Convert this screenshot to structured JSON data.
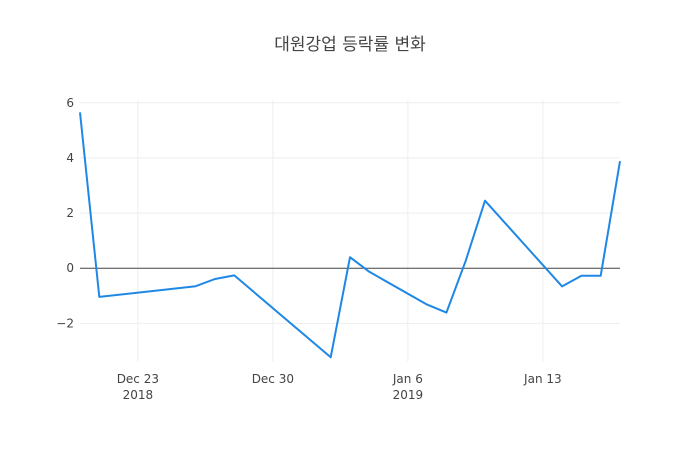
{
  "chart_data": {
    "type": "line",
    "title": "대원강업 등락률 변화",
    "xlabel": "",
    "ylabel": "",
    "x": [
      "2018-12-20",
      "2018-12-21",
      "2018-12-26",
      "2018-12-27",
      "2018-12-28",
      "2019-01-02",
      "2019-01-03",
      "2019-01-04",
      "2019-01-07",
      "2019-01-08",
      "2019-01-09",
      "2019-01-10",
      "2019-01-14",
      "2019-01-15",
      "2019-01-16",
      "2019-01-17"
    ],
    "series": [
      {
        "name": "",
        "color": "#1f88e5",
        "values": [
          5.65,
          -1.04,
          -0.65,
          -0.39,
          -0.26,
          -3.23,
          0.4,
          -0.13,
          -1.32,
          -1.61,
          0.27,
          2.45,
          -0.66,
          -0.27,
          -0.27,
          3.88
        ]
      }
    ],
    "ylim": [
      -3.4,
      6.1
    ],
    "xlim": [
      "2018-12-20",
      "2019-01-17"
    ],
    "y_ticks": [
      6,
      4,
      2,
      0,
      -2
    ],
    "y_tick_labels": [
      "6",
      "4",
      "2",
      "0",
      "−2"
    ],
    "x_ticks": [
      "2018-12-23",
      "2018-12-30",
      "2019-01-06",
      "2019-01-13"
    ],
    "x_tick_labels": [
      "Dec 23",
      "Dec 30",
      "Jan 6",
      "Jan 13"
    ],
    "x_tick_sublabels": [
      "2018",
      "",
      "2019",
      ""
    ],
    "grid": true,
    "zero_line": true,
    "legend": "none"
  }
}
